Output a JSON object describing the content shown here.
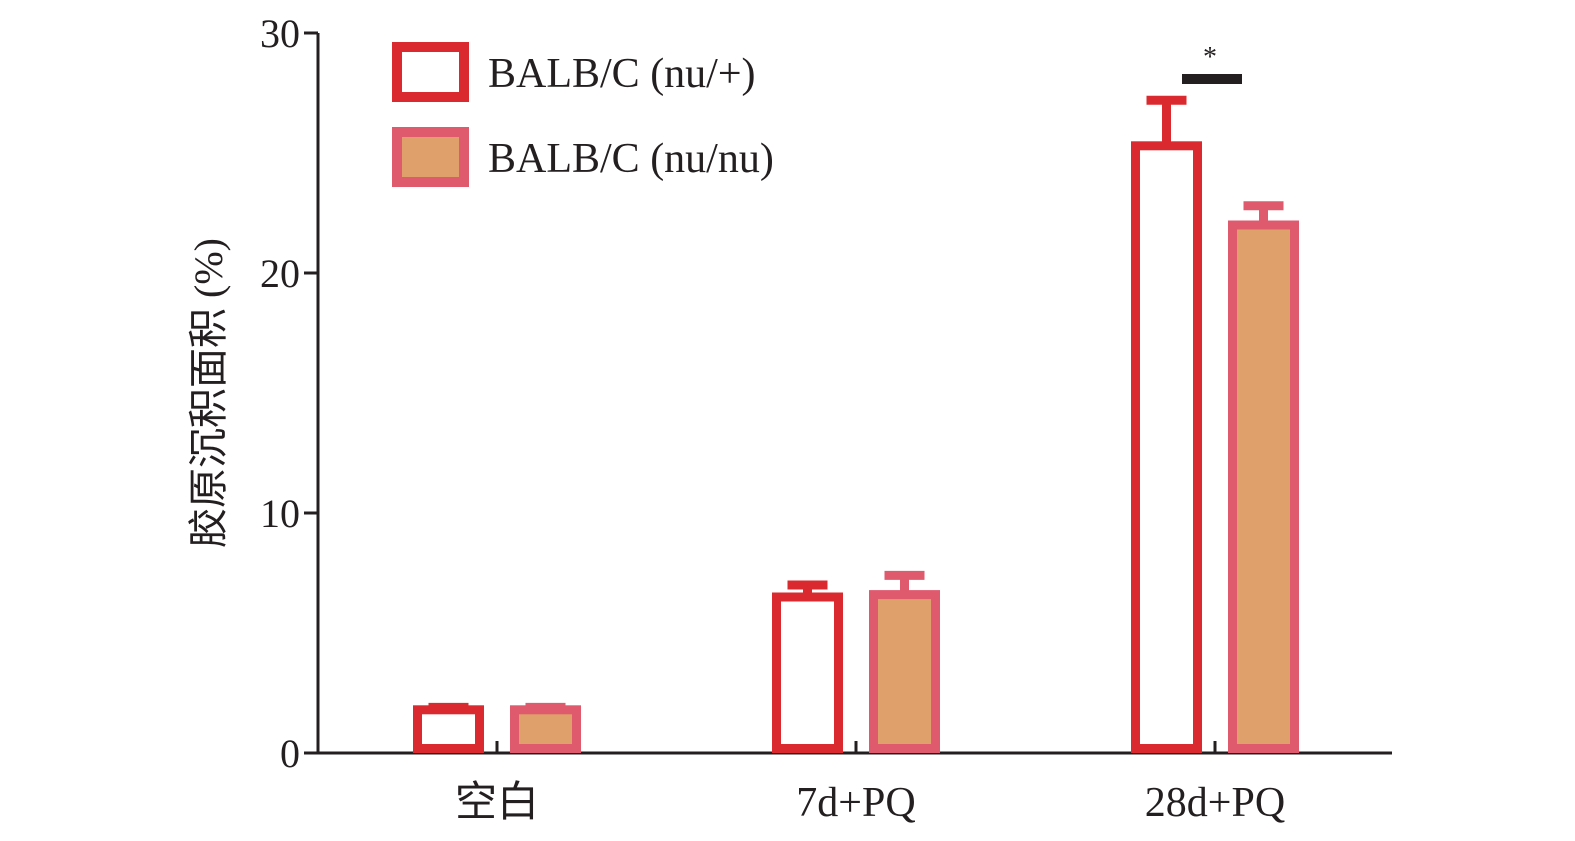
{
  "chart_data": {
    "type": "bar",
    "categories": [
      "空白",
      "7d+PQ",
      "28d+PQ"
    ],
    "series": [
      {
        "name": "BALB/C (nu/+)",
        "values": [
          1.8,
          6.5,
          25.3
        ],
        "errors": [
          0.1,
          0.5,
          1.9
        ]
      },
      {
        "name": "BALB/C (nu/nu)",
        "values": [
          1.8,
          6.6,
          22.0
        ],
        "errors": [
          0.1,
          0.8,
          0.8
        ]
      }
    ],
    "title": "",
    "xlabel": "",
    "ylabel": "胶原沉积面积 (%)",
    "ylim": [
      0,
      30
    ],
    "yticks": [
      "0",
      "10",
      "20",
      "30"
    ],
    "grid": false,
    "legend_position": "top-left",
    "significance": [
      {
        "category_index": 2,
        "label": "*"
      }
    ],
    "colors": {
      "series1_stroke": "#db2a2f",
      "series1_fill": "#ffffff",
      "series2_stroke": "#e05a6e",
      "series2_fill": "#dfa06c",
      "axis": "#231f20",
      "text": "#231f20"
    }
  }
}
